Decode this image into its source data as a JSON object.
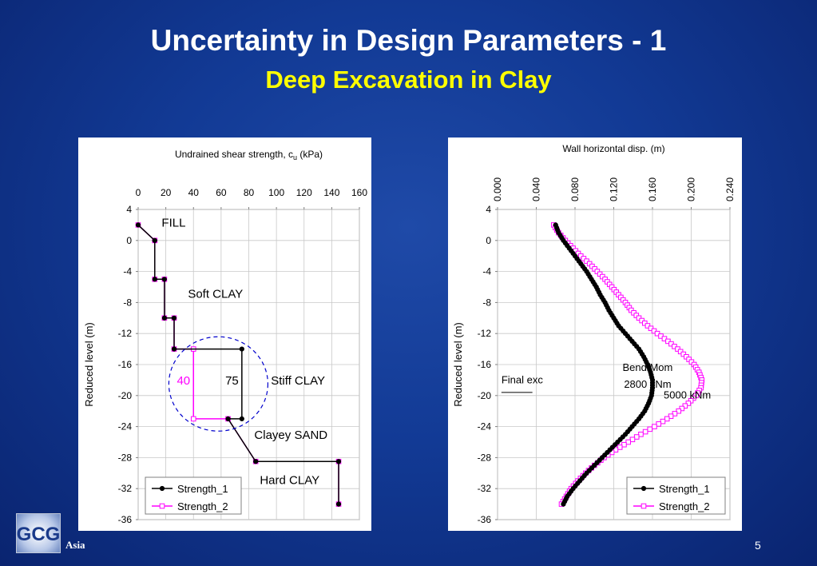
{
  "slide": {
    "title": "Uncertainty in Design Parameters - 1",
    "subtitle": "Deep Excavation in Clay",
    "page_number": "5",
    "brand": "Asia",
    "logo_text": "GCG"
  },
  "colors": {
    "series_1": "#000000",
    "series_2": "#ff00ff",
    "highlight_circle": "#0000cc",
    "title": "#ffffff",
    "subtitle": "#ffff00"
  },
  "chart_data": [
    {
      "type": "line",
      "title": "Undrained shear strength, cu (kPa)",
      "title_main": "Undrained shear strength, c",
      "title_sub": "u",
      "title_end": " (kPa)",
      "xlabel": "",
      "ylabel": "Reduced level (m)",
      "xlim": [
        0,
        160
      ],
      "ylim": [
        -36,
        4
      ],
      "x_axis_position": "top",
      "x_ticks": [
        0,
        20,
        40,
        60,
        80,
        100,
        120,
        140,
        160
      ],
      "y_ticks": [
        4,
        0,
        -4,
        -8,
        -12,
        -16,
        -20,
        -24,
        -28,
        -32,
        -36
      ],
      "grid": true,
      "legend": "bottom-left",
      "series": [
        {
          "name": "Strength_1",
          "marker": "filled-circle",
          "x": [
            0,
            12,
            12,
            12,
            19,
            19,
            26,
            26,
            75,
            75,
            65,
            85,
            145,
            145
          ],
          "y": [
            2,
            0,
            0,
            -5,
            -5,
            -10,
            -10,
            -14,
            -14,
            -23,
            -23,
            -28.5,
            -28.5,
            -34
          ]
        },
        {
          "name": "Strength_2",
          "marker": "open-square",
          "x": [
            0,
            12,
            12,
            12,
            19,
            19,
            26,
            26,
            40,
            40,
            65,
            85,
            145,
            145
          ],
          "y": [
            2,
            0,
            0,
            -5,
            -5,
            -10,
            -10,
            -14,
            -14,
            -23,
            -23,
            -28.5,
            -28.5,
            -34
          ]
        }
      ],
      "annotations": [
        {
          "text": "FILL",
          "x": 17,
          "y": 1.8
        },
        {
          "text": "Soft CLAY",
          "x": 36,
          "y": -7.4
        },
        {
          "text": "Stiff CLAY",
          "x": 96,
          "y": -18.6
        },
        {
          "text": "Clayey SAND",
          "x": 84,
          "y": -25.6
        },
        {
          "text": "Hard CLAY",
          "x": 88,
          "y": -31.4
        },
        {
          "text": "40",
          "x": 28,
          "y": -18.6,
          "color": "#ff00ff"
        },
        {
          "text": "75",
          "x": 63,
          "y": -18.6
        }
      ]
    },
    {
      "type": "line",
      "title": "Wall horizontal disp. (m)",
      "xlabel": "",
      "ylabel": "Reduced level (m)",
      "xlim": [
        0,
        0.24
      ],
      "ylim": [
        -36,
        4
      ],
      "x_axis_position": "top",
      "x_tick_labels": [
        "0.000",
        "0.040",
        "0.080",
        "0.120",
        "0.160",
        "0.200",
        "0.240"
      ],
      "x_ticks": [
        0,
        0.04,
        0.08,
        0.12,
        0.16,
        0.2,
        0.24
      ],
      "y_ticks": [
        4,
        0,
        -4,
        -8,
        -12,
        -16,
        -20,
        -24,
        -28,
        -32,
        -36
      ],
      "grid": true,
      "legend": "bottom-right",
      "series": [
        {
          "name": "Strength_1",
          "marker": "filled-circle",
          "y": [
            2,
            1,
            0,
            -1,
            -2,
            -3,
            -4,
            -5,
            -6,
            -7,
            -8,
            -9,
            -10,
            -11,
            -12,
            -13,
            -14,
            -15,
            -16,
            -17,
            -18,
            -19,
            -20,
            -21,
            -22,
            -23,
            -24,
            -25,
            -26,
            -27,
            -28,
            -29,
            -30,
            -31,
            -32,
            -33,
            -34
          ],
          "x": [
            0.06,
            0.063,
            0.068,
            0.074,
            0.08,
            0.086,
            0.092,
            0.097,
            0.102,
            0.106,
            0.111,
            0.115,
            0.12,
            0.125,
            0.132,
            0.139,
            0.146,
            0.151,
            0.155,
            0.158,
            0.16,
            0.16,
            0.159,
            0.156,
            0.152,
            0.146,
            0.139,
            0.132,
            0.124,
            0.116,
            0.108,
            0.1,
            0.092,
            0.085,
            0.078,
            0.072,
            0.068
          ]
        },
        {
          "name": "Strength_2",
          "marker": "open-square",
          "y": [
            2,
            1,
            0,
            -1,
            -2,
            -3,
            -4,
            -5,
            -6,
            -7,
            -8,
            -9,
            -10,
            -11,
            -12,
            -13,
            -14,
            -15,
            -16,
            -17,
            -18,
            -19,
            -20,
            -21,
            -22,
            -23,
            -24,
            -25,
            -26,
            -27,
            -28,
            -29,
            -30,
            -31,
            -32,
            -33,
            -34
          ],
          "x": [
            0.058,
            0.063,
            0.07,
            0.078,
            0.086,
            0.095,
            0.103,
            0.111,
            0.118,
            0.125,
            0.132,
            0.138,
            0.146,
            0.155,
            0.165,
            0.176,
            0.186,
            0.195,
            0.203,
            0.208,
            0.211,
            0.21,
            0.205,
            0.197,
            0.187,
            0.175,
            0.162,
            0.148,
            0.135,
            0.122,
            0.11,
            0.1,
            0.091,
            0.083,
            0.076,
            0.071,
            0.066
          ]
        }
      ],
      "annotations": [
        {
          "text": "Bend Mom",
          "x": 0.155,
          "y": -16.8,
          "anchor": "middle"
        },
        {
          "text": "2800 kNm",
          "x": 0.155,
          "y": -19,
          "anchor": "middle"
        },
        {
          "text": "5000 kNm",
          "x": 0.196,
          "y": -20.4,
          "anchor": "middle"
        },
        {
          "text": "Final exc",
          "x": 0.004,
          "y": -18.4,
          "anchor": "start"
        }
      ]
    }
  ]
}
